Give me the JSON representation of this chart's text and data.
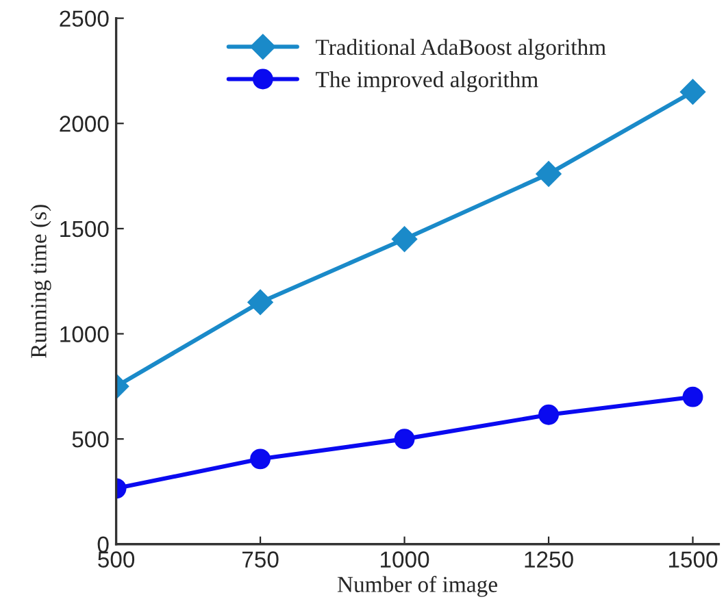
{
  "chart_data": {
    "type": "line",
    "xlabel": "Number of image",
    "ylabel": "Running time (s)",
    "x": [
      500,
      750,
      1000,
      1250,
      1500
    ],
    "series": [
      {
        "name": "Traditional AdaBoost algorithm",
        "color": "#1a8ac9",
        "marker": "diamond",
        "values": [
          750,
          1150,
          1450,
          1760,
          2150
        ]
      },
      {
        "name": "The improved algorithm",
        "color": "#0a0af0",
        "marker": "circle",
        "values": [
          265,
          405,
          500,
          615,
          700
        ]
      }
    ],
    "xlim": [
      500,
      1545
    ],
    "xticks": [
      500,
      750,
      1000,
      1250,
      1500
    ],
    "ylim": [
      0,
      2500
    ],
    "yticks": [
      0,
      500,
      1000,
      1500,
      2000,
      2500
    ],
    "grid": false,
    "legend": "top",
    "line_style": "solid"
  }
}
